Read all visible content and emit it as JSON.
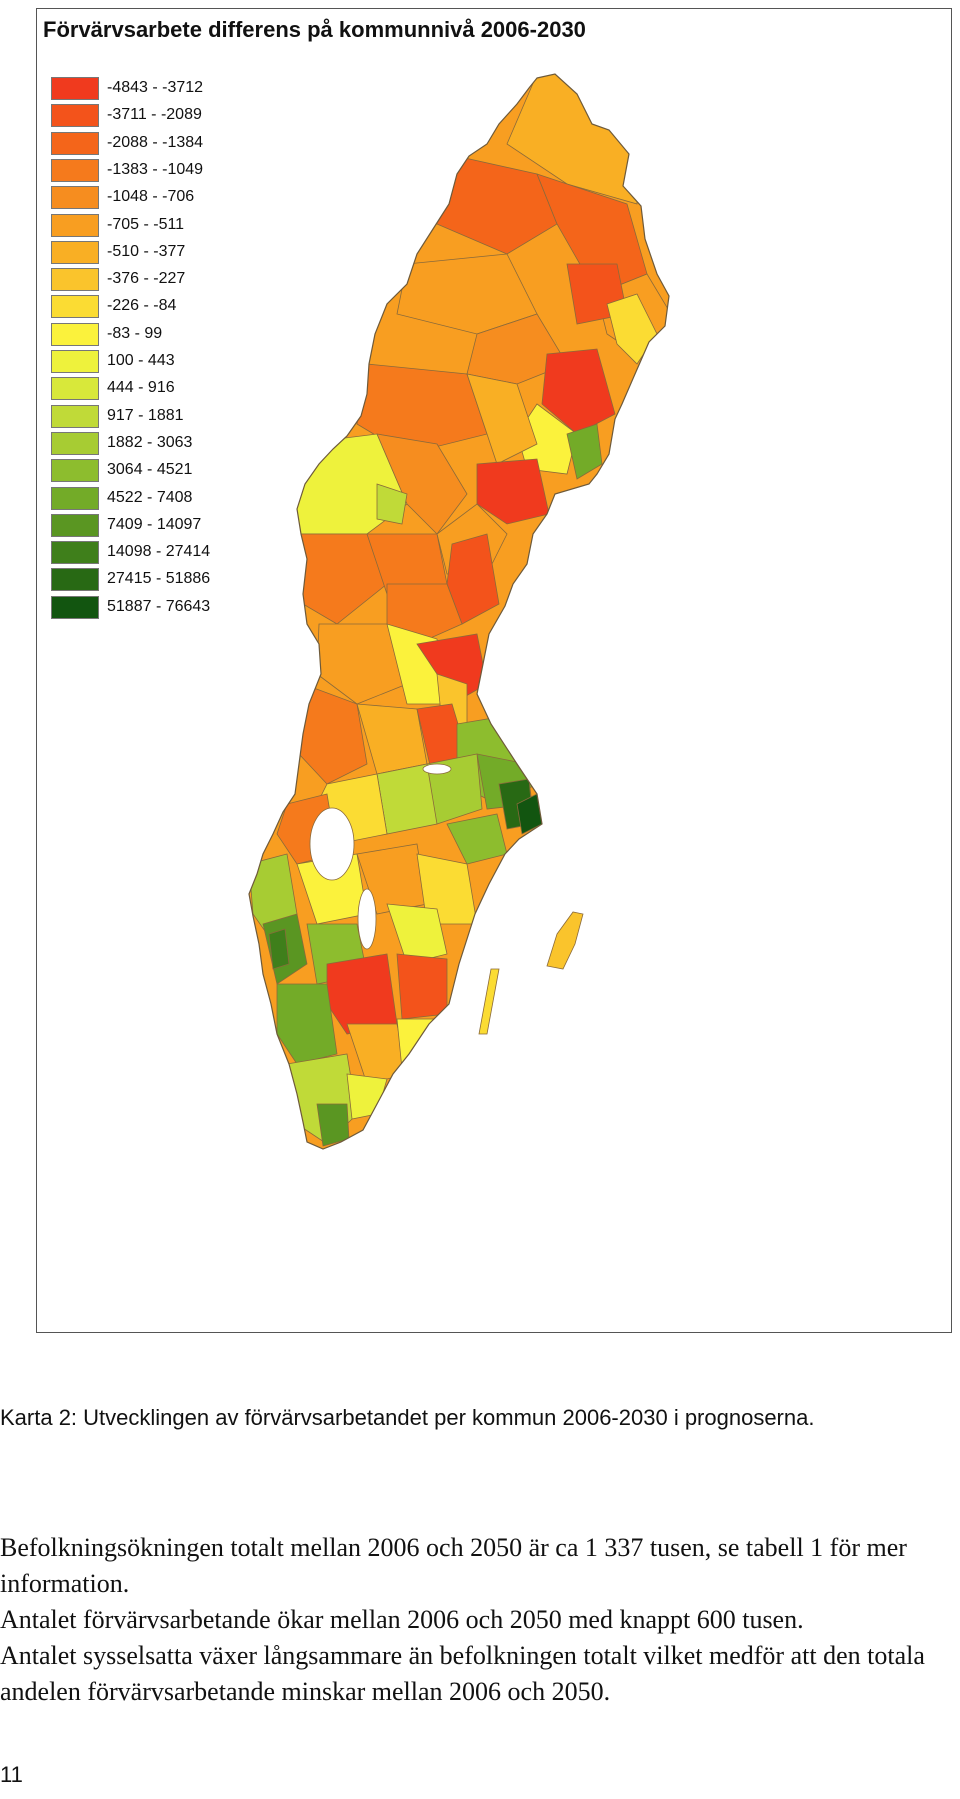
{
  "map": {
    "title": "Förvärvsarbete differens på kommunnivå 2006-2030",
    "legend": [
      {
        "label": "-4843 - -3712",
        "color": "#f03a1e"
      },
      {
        "label": "-3711 - -2089",
        "color": "#f3531b"
      },
      {
        "label": "-2088 - -1384",
        "color": "#f4651a"
      },
      {
        "label": "-1383 - -1049",
        "color": "#f57a1c"
      },
      {
        "label": "-1048 - -706",
        "color": "#f68d1f"
      },
      {
        "label": "-705 - -511",
        "color": "#f89e21"
      },
      {
        "label": "-510 - -377",
        "color": "#f9af24"
      },
      {
        "label": "-376 - -227",
        "color": "#fac42c"
      },
      {
        "label": "-226 - -84",
        "color": "#fbdc33"
      },
      {
        "label": "-83 - 99",
        "color": "#fbf23c"
      },
      {
        "label": "100 - 443",
        "color": "#eef23c"
      },
      {
        "label": "444 - 916",
        "color": "#d8e83a"
      },
      {
        "label": "917 - 1881",
        "color": "#c0da38"
      },
      {
        "label": "1882 - 3063",
        "color": "#a7cc33"
      },
      {
        "label": "3064 - 4521",
        "color": "#8dbd2e"
      },
      {
        "label": "4522 - 7408",
        "color": "#73ab28"
      },
      {
        "label": "7409 - 14097",
        "color": "#5a9622"
      },
      {
        "label": "14098 - 27414",
        "color": "#3f7f1b"
      },
      {
        "label": "27415 - 51886",
        "color": "#286914"
      },
      {
        "label": "51887 - 76643",
        "color": "#125510"
      }
    ]
  },
  "caption": "Karta 2: Utvecklingen av förvärvsarbetandet per kommun 2006-2030 i prognoserna.",
  "paragraphs": [
    "Befolkningsökningen totalt mellan 2006 och 2050 är ca 1 337 tusen, se tabell 1 för mer information.",
    "Antalet förvärvsarbetande ökar mellan 2006 och 2050 med knappt 600 tusen.",
    "Antalet sysselsatta växer långsammare än befolkningen totalt vilket medför att den totala andelen förvärvsarbetande minskar mellan 2006 och 2050."
  ],
  "page_number": "11"
}
